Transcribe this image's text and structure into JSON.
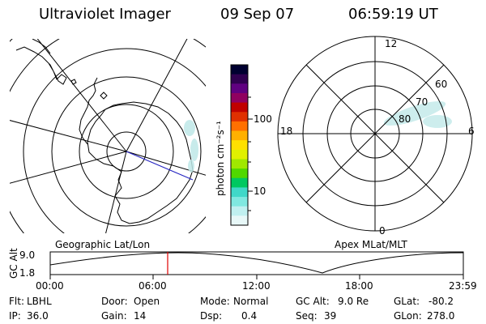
{
  "header": {
    "instrument": "Ultraviolet Imager",
    "date": "09 Sep 07",
    "time": "06:59:19 UT"
  },
  "left_plot": {
    "caption": "Geographic Lat/Lon"
  },
  "right_plot": {
    "caption": "Apex MLat/MLT",
    "mlt_labels": [
      "12",
      "18",
      "6",
      "0"
    ],
    "mlat_labels": [
      "60",
      "70",
      "80"
    ]
  },
  "colorbar": {
    "unit_label": "photon cm⁻²s⁻¹",
    "tick_labels": [
      "100",
      "10"
    ],
    "colors": [
      "#000030",
      "#300050",
      "#600080",
      "#900060",
      "#c00000",
      "#e03000",
      "#ff7000",
      "#ffb000",
      "#ffe000",
      "#e0f000",
      "#a0e800",
      "#50d800",
      "#00c860",
      "#40d8c8",
      "#80e8e0",
      "#c0f0f0",
      "#e8f8f8"
    ]
  },
  "alt_plot": {
    "ylabel": "GC Alt",
    "ytick_top": "9.0",
    "ytick_bottom": "1.8",
    "xticks": [
      "00:00",
      "06:00",
      "12:00",
      "18:00",
      "23:59"
    ],
    "current_marker_time": "06:59:19",
    "current_marker_color": "#e00000"
  },
  "status": {
    "row1": [
      {
        "key": "Flt:",
        "val": "LBHL"
      },
      {
        "key": "Door:",
        "val": "Open"
      },
      {
        "key": "Mode:",
        "val": "Normal"
      },
      {
        "key": "GC Alt:",
        "val": "9.0 Re"
      },
      {
        "key": "GLat:",
        "val": "-80.2"
      }
    ],
    "row2": [
      {
        "key": "IP:",
        "val": "36.0"
      },
      {
        "key": "Gain:",
        "val": "14"
      },
      {
        "key": "Dsp:",
        "val": "0.4"
      },
      {
        "key": "Seq:",
        "val": "39"
      },
      {
        "key": "GLon:",
        "val": "278.0"
      }
    ]
  }
}
